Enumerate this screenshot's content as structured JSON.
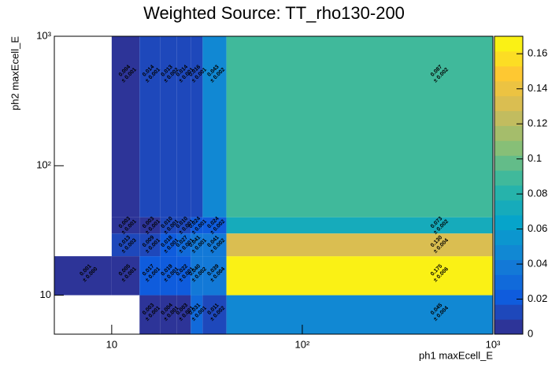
{
  "chart_data": {
    "type": "heatmap",
    "title": "Weighted Source: TT_rho130-200",
    "x_label": "ph1 maxEcell_E",
    "y_label": "ph2 maxEcell_E",
    "log_x": true,
    "log_y": true,
    "colormap": "kBird",
    "xbins": [
      5,
      10,
      14,
      18,
      22,
      26,
      30,
      40,
      1000
    ],
    "ybins": [
      5,
      10,
      20,
      30,
      40,
      1000
    ],
    "xlim": [
      5,
      1000
    ],
    "ylim": [
      5,
      1000
    ],
    "zlim": [
      0,
      0.17
    ],
    "xticks": [
      10,
      {
        "value": 100,
        "label": "10²"
      },
      {
        "value": 1000,
        "label": "10³"
      }
    ],
    "yticks": [
      10,
      {
        "value": 100,
        "label": "10²"
      },
      {
        "value": 1000,
        "label": "10³"
      }
    ],
    "zticks": [
      0,
      0.02,
      0.04,
      0.06,
      0.08,
      0.1,
      0.12,
      0.14,
      0.16
    ],
    "z": [
      [
        null,
        null,
        0.003,
        0.004,
        0.003,
        0.031,
        0.011,
        0.045
      ],
      [
        0.001,
        0.005,
        0.017,
        0.019,
        0.022,
        0.04,
        0.039,
        0.175
      ],
      [
        null,
        0.013,
        0.009,
        0.018,
        0.027,
        0.041,
        0.041,
        0.13
      ],
      [
        null,
        0.003,
        0.003,
        0.01,
        0.01,
        0.024,
        0.024,
        0.073
      ],
      [
        null,
        0.004,
        0.014,
        0.013,
        0.014,
        0.016,
        0.043,
        0.087
      ]
    ],
    "value_labels": [
      [
        null,
        null,
        "0.003",
        "0.004",
        "0.003",
        "0.031",
        "0.011",
        "0.045"
      ],
      [
        "0.001",
        "0.005",
        "0.017",
        "0.019",
        "0.022",
        "0.040",
        "0.039",
        "0.175"
      ],
      [
        null,
        "0.013",
        "0.009",
        "0.018",
        "0.027",
        "0.041",
        "0.041",
        "0.130"
      ],
      [
        null,
        "0.003",
        "0.003",
        "0.010",
        "0.010",
        "0.024",
        "0.024",
        "0.073"
      ],
      [
        null,
        "0.004",
        "0.014",
        "0.013",
        "0.014",
        "0.016",
        "0.043",
        "0.087"
      ]
    ],
    "errors": [
      [
        null,
        null,
        0.001,
        0.001,
        0.001,
        0.001,
        0.002,
        0.004
      ],
      [
        0,
        0.001,
        0.001,
        0.001,
        0.001,
        0.002,
        0.004,
        0.006
      ],
      [
        null,
        0.003,
        0.001,
        0.001,
        0.001,
        0.001,
        0.002,
        0.004
      ],
      [
        null,
        0.001,
        0.001,
        0.001,
        0.001,
        0.001,
        0.002,
        0.002
      ],
      [
        null,
        0.001,
        0.001,
        0.002,
        0.001,
        0.001,
        0.002,
        0.002
      ]
    ],
    "error_labels": [
      [
        null,
        null,
        "± 0.001",
        "± 0.001",
        "± 0.001",
        "± 0.001",
        "± 0.002",
        "± 0.004"
      ],
      [
        "± 0.000",
        "± 0.001",
        "± 0.001",
        "± 0.001",
        "± 0.001",
        "± 0.002",
        "± 0.004",
        "± 0.006"
      ],
      [
        null,
        "± 0.003",
        "± 0.001",
        "± 0.001",
        "± 0.001",
        "± 0.001",
        "± 0.002",
        "± 0.004"
      ],
      [
        null,
        "± 0.001",
        "± 0.001",
        "± 0.001",
        "± 0.001",
        "± 0.001",
        "± 0.002",
        "± 0.002"
      ],
      [
        null,
        "± 0.001",
        "± 0.001",
        "± 0.002",
        "± 0.001",
        "± 0.001",
        "± 0.002",
        "± 0.002"
      ]
    ]
  }
}
